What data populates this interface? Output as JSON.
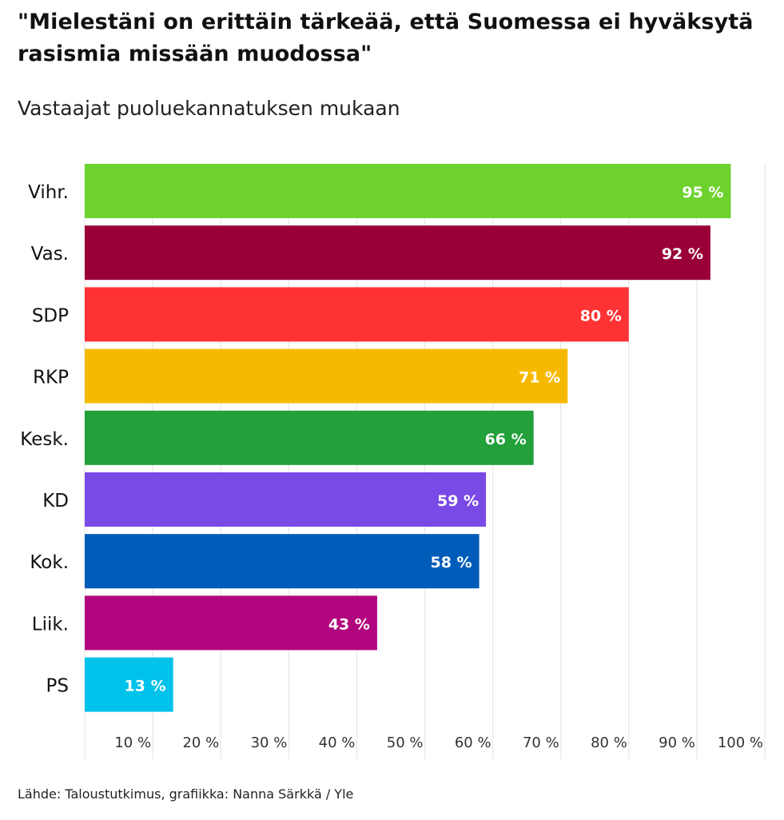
{
  "title": "\"Mielestäni on erittäin tärkeää, että Suomessa ei hyväksytä rasismia missään muodossa\"",
  "subtitle": "Vastaajat puoluekannatuksen mukaan",
  "source": "Lähde: Taloustutkimus, grafiikka: Nanna Särkkä / Yle",
  "chart_data": {
    "type": "bar",
    "orientation": "horizontal",
    "title": "\"Mielestäni on erittäin tärkeää, että Suomessa ei hyväksytä rasismia missään muodossa\"",
    "subtitle": "Vastaajat puoluekannatuksen mukaan",
    "xlabel": "",
    "ylabel": "",
    "xlim": [
      0,
      100
    ],
    "grid": true,
    "value_suffix": " %",
    "categories": [
      "Vihr.",
      "Vas.",
      "SDP",
      "RKP",
      "Kesk.",
      "KD",
      "Kok.",
      "Liik.",
      "PS"
    ],
    "values": [
      95,
      92,
      80,
      71,
      66,
      59,
      58,
      43,
      13
    ],
    "colors": [
      "#6dd22e",
      "#990038",
      "#ff3333",
      "#f7b900",
      "#22a03a",
      "#7a4ae6",
      "#005cb9",
      "#b1057d",
      "#00c2eb"
    ],
    "tick_values": [
      10,
      20,
      30,
      40,
      50,
      60,
      70,
      80,
      90,
      100
    ],
    "tick_labels": [
      "10 %",
      "20 %",
      "30 %",
      "40 %",
      "50 %",
      "60 %",
      "70 %",
      "80 %",
      "90 %",
      "100 %"
    ]
  }
}
